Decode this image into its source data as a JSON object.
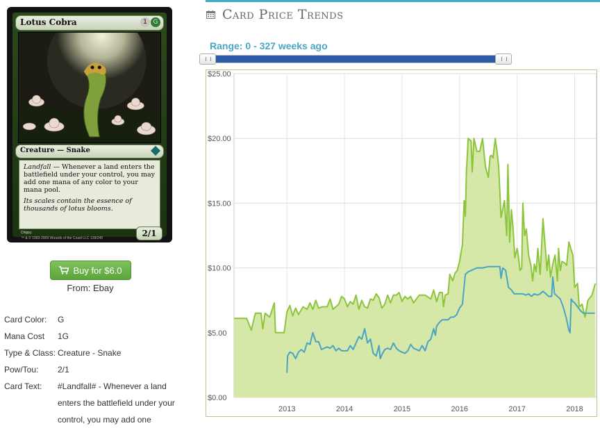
{
  "card": {
    "name": "Lotus Cobra",
    "cost_generic": "1",
    "cost_color": "G",
    "type_line": "Creature — Snake",
    "rules_keyword": "Landfall",
    "rules_text": " — Whenever a land enters the battlefield under your control, you may add one mana of any color to your mana pool.",
    "flavor_text": "Its scales contain the essence of thousands of lotus blooms.",
    "power_toughness": "2/1",
    "artist": "Chippy",
    "copyright": "™ & © 1993-2009 Wizards of the Coast LLC 139/249"
  },
  "buy": {
    "label": "Buy for $6.0",
    "from": "From: Ebay"
  },
  "details": [
    {
      "label": "Card Color:",
      "value": "G"
    },
    {
      "label": "Mana Cost",
      "value": "1G"
    },
    {
      "label": "Type & Class:",
      "value": "Creature - Snake"
    },
    {
      "label": "Pow/Tou:",
      "value": "2/1"
    },
    {
      "label": "Card Text:",
      "value": "#Landfall# - Whenever a land enters the battlefield under your control, you may add one"
    }
  ],
  "header": {
    "title": "Card Price Trends",
    "icon": "calendar-icon",
    "accent": "#3fb0c6"
  },
  "range": {
    "label": "Range: 0 - 327 weeks ago",
    "min_weeks": 0,
    "max_weeks": 327
  },
  "chart_data": {
    "type": "area",
    "title": "",
    "xlabel": "",
    "ylabel": "",
    "ylim": [
      0,
      25
    ],
    "yticks": [
      "$0.00",
      "$5.00",
      "$10.00",
      "$15.00",
      "$20.00",
      "$25.00"
    ],
    "xlim": [
      2012.08,
      2018.38
    ],
    "xticks": [
      {
        "label": "2013",
        "x": 2013
      },
      {
        "label": "2014",
        "x": 2014
      },
      {
        "label": "2015",
        "x": 2015
      },
      {
        "label": "2016",
        "x": 2016
      },
      {
        "label": "2017",
        "x": 2017
      },
      {
        "label": "2018",
        "x": 2018
      }
    ],
    "grid": true,
    "series": [
      {
        "color": "#8cc43c",
        "fill": "#d5e8a8",
        "points": [
          [
            2012.08,
            6.1
          ],
          [
            2012.3,
            6.1
          ],
          [
            2012.38,
            5.2
          ],
          [
            2012.45,
            6.5
          ],
          [
            2012.55,
            6.5
          ],
          [
            2012.58,
            5.3
          ],
          [
            2012.62,
            6.5
          ],
          [
            2012.7,
            6.2
          ],
          [
            2012.78,
            7.3
          ],
          [
            2012.8,
            5.0
          ],
          [
            2012.88,
            5.0
          ],
          [
            2012.95,
            5.0
          ],
          [
            2013.0,
            6.6
          ],
          [
            2013.05,
            7.1
          ],
          [
            2013.1,
            6.3
          ],
          [
            2013.15,
            6.9
          ],
          [
            2013.2,
            6.4
          ],
          [
            2013.28,
            7.0
          ],
          [
            2013.35,
            6.8
          ],
          [
            2013.4,
            7.3
          ],
          [
            2013.45,
            6.8
          ],
          [
            2013.5,
            7.5
          ],
          [
            2013.55,
            6.9
          ],
          [
            2013.62,
            7.0
          ],
          [
            2013.7,
            7.0
          ],
          [
            2013.75,
            7.6
          ],
          [
            2013.8,
            6.8
          ],
          [
            2013.85,
            7.0
          ],
          [
            2013.9,
            7.2
          ],
          [
            2013.95,
            7.8
          ],
          [
            2014.0,
            7.6
          ],
          [
            2014.05,
            7.0
          ],
          [
            2014.1,
            7.4
          ],
          [
            2014.15,
            7.2
          ],
          [
            2014.2,
            7.9
          ],
          [
            2014.25,
            6.8
          ],
          [
            2014.3,
            7.5
          ],
          [
            2014.35,
            7.0
          ],
          [
            2014.4,
            6.9
          ],
          [
            2014.45,
            7.6
          ],
          [
            2014.5,
            7.5
          ],
          [
            2014.55,
            8.0
          ],
          [
            2014.6,
            7.7
          ],
          [
            2014.65,
            6.9
          ],
          [
            2014.7,
            7.2
          ],
          [
            2014.75,
            7.9
          ],
          [
            2014.8,
            7.3
          ],
          [
            2014.85,
            7.9
          ],
          [
            2014.9,
            7.9
          ],
          [
            2014.95,
            8.1
          ],
          [
            2015.0,
            7.4
          ],
          [
            2015.05,
            7.8
          ],
          [
            2015.1,
            7.6
          ],
          [
            2015.15,
            7.8
          ],
          [
            2015.2,
            7.3
          ],
          [
            2015.3,
            7.9
          ],
          [
            2015.4,
            7.9
          ],
          [
            2015.5,
            7.6
          ],
          [
            2015.55,
            8.3
          ],
          [
            2015.6,
            7.4
          ],
          [
            2015.65,
            8.1
          ],
          [
            2015.7,
            8.1
          ],
          [
            2015.72,
            7.0
          ],
          [
            2015.75,
            7.9
          ],
          [
            2015.8,
            8.0
          ],
          [
            2015.83,
            9.5
          ],
          [
            2015.88,
            9.0
          ],
          [
            2015.92,
            9.6
          ],
          [
            2015.96,
            9.8
          ],
          [
            2016.0,
            10.5
          ],
          [
            2016.05,
            11.8
          ],
          [
            2016.08,
            15.2
          ],
          [
            2016.1,
            14.0
          ],
          [
            2016.12,
            17.5
          ],
          [
            2016.15,
            20.0
          ],
          [
            2016.2,
            19.8
          ],
          [
            2016.22,
            17.4
          ],
          [
            2016.25,
            20.0
          ],
          [
            2016.3,
            19.0
          ],
          [
            2016.35,
            19.0
          ],
          [
            2016.4,
            20.0
          ],
          [
            2016.45,
            17.8
          ],
          [
            2016.5,
            17.0
          ],
          [
            2016.53,
            18.6
          ],
          [
            2016.55,
            18.7
          ],
          [
            2016.58,
            18.5
          ],
          [
            2016.62,
            20.0
          ],
          [
            2016.65,
            19.0
          ],
          [
            2016.68,
            17.8
          ],
          [
            2016.72,
            13.9
          ],
          [
            2016.78,
            15.2
          ],
          [
            2016.82,
            12.5
          ],
          [
            2016.84,
            18.0
          ],
          [
            2016.87,
            12.0
          ],
          [
            2016.9,
            14.5
          ],
          [
            2016.93,
            13.0
          ],
          [
            2016.96,
            10.8
          ],
          [
            2017.0,
            11.5
          ],
          [
            2017.02,
            11.0
          ],
          [
            2017.05,
            9.8
          ],
          [
            2017.08,
            10.0
          ],
          [
            2017.1,
            15.0
          ],
          [
            2017.13,
            12.5
          ],
          [
            2017.16,
            13.0
          ],
          [
            2017.2,
            11.0
          ],
          [
            2017.24,
            10.2
          ],
          [
            2017.27,
            9.0
          ],
          [
            2017.3,
            10.3
          ],
          [
            2017.33,
            9.7
          ],
          [
            2017.36,
            11.5
          ],
          [
            2017.4,
            9.5
          ],
          [
            2017.45,
            13.8
          ],
          [
            2017.5,
            11.0
          ],
          [
            2017.52,
            9.8
          ],
          [
            2017.55,
            11.0
          ],
          [
            2017.58,
            9.3
          ],
          [
            2017.62,
            10.3
          ],
          [
            2017.66,
            11.0
          ],
          [
            2017.7,
            9.0
          ],
          [
            2017.72,
            11.5
          ],
          [
            2017.75,
            9.8
          ],
          [
            2017.78,
            10.5
          ],
          [
            2017.82,
            10.4
          ],
          [
            2017.86,
            10.2
          ],
          [
            2017.9,
            12.0
          ],
          [
            2017.94,
            11.4
          ],
          [
            2017.97,
            11.0
          ],
          [
            2018.0,
            8.5
          ],
          [
            2018.05,
            8.8
          ],
          [
            2018.08,
            7.0
          ],
          [
            2018.13,
            7.2
          ],
          [
            2018.18,
            6.2
          ],
          [
            2018.23,
            7.5
          ],
          [
            2018.3,
            7.9
          ],
          [
            2018.36,
            8.8
          ]
        ]
      },
      {
        "color": "#4ba3c3",
        "points": [
          [
            2013.0,
            1.9
          ],
          [
            2013.01,
            3.2
          ],
          [
            2013.05,
            3.5
          ],
          [
            2013.1,
            3.4
          ],
          [
            2013.15,
            3.0
          ],
          [
            2013.2,
            3.5
          ],
          [
            2013.25,
            3.7
          ],
          [
            2013.3,
            3.5
          ],
          [
            2013.35,
            4.2
          ],
          [
            2013.4,
            4.1
          ],
          [
            2013.45,
            5.0
          ],
          [
            2013.5,
            4.3
          ],
          [
            2013.55,
            4.3
          ],
          [
            2013.6,
            3.7
          ],
          [
            2013.7,
            3.9
          ],
          [
            2013.75,
            3.8
          ],
          [
            2013.8,
            4.0
          ],
          [
            2013.85,
            3.6
          ],
          [
            2013.9,
            3.8
          ],
          [
            2013.95,
            3.6
          ],
          [
            2014.05,
            3.6
          ],
          [
            2014.1,
            4.0
          ],
          [
            2014.15,
            3.7
          ],
          [
            2014.2,
            4.2
          ],
          [
            2014.25,
            4.7
          ],
          [
            2014.3,
            4.5
          ],
          [
            2014.35,
            5.3
          ],
          [
            2014.4,
            4.2
          ],
          [
            2014.45,
            4.5
          ],
          [
            2014.5,
            3.4
          ],
          [
            2014.55,
            3.2
          ],
          [
            2014.6,
            4.0
          ],
          [
            2014.62,
            3.0
          ],
          [
            2014.65,
            3.3
          ],
          [
            2014.7,
            3.7
          ],
          [
            2014.75,
            3.8
          ],
          [
            2014.8,
            3.7
          ],
          [
            2014.85,
            4.2
          ],
          [
            2014.9,
            3.8
          ],
          [
            2014.95,
            3.6
          ],
          [
            2015.0,
            3.5
          ],
          [
            2015.05,
            3.4
          ],
          [
            2015.1,
            3.6
          ],
          [
            2015.15,
            4.1
          ],
          [
            2015.2,
            3.8
          ],
          [
            2015.3,
            3.6
          ],
          [
            2015.35,
            4.0
          ],
          [
            2015.4,
            3.6
          ],
          [
            2015.45,
            4.3
          ],
          [
            2015.5,
            4.5
          ],
          [
            2015.55,
            5.3
          ],
          [
            2015.58,
            4.8
          ],
          [
            2015.6,
            5.5
          ],
          [
            2015.65,
            5.8
          ],
          [
            2015.7,
            6.0
          ],
          [
            2015.75,
            6.0
          ],
          [
            2015.8,
            6.0
          ],
          [
            2015.85,
            6.2
          ],
          [
            2015.9,
            6.2
          ],
          [
            2015.95,
            6.4
          ],
          [
            2016.0,
            6.9
          ],
          [
            2016.05,
            7.2
          ],
          [
            2016.1,
            9.5
          ],
          [
            2016.15,
            9.7
          ],
          [
            2016.2,
            9.8
          ],
          [
            2016.3,
            10.0
          ],
          [
            2016.4,
            10.0
          ],
          [
            2016.5,
            10.1
          ],
          [
            2016.6,
            10.1
          ],
          [
            2016.7,
            10.1
          ],
          [
            2016.72,
            9.2
          ],
          [
            2016.75,
            10.0
          ],
          [
            2016.8,
            9.8
          ],
          [
            2016.85,
            8.5
          ],
          [
            2016.9,
            8.3
          ],
          [
            2016.95,
            8.0
          ],
          [
            2017.0,
            8.0
          ],
          [
            2017.1,
            8.0
          ],
          [
            2017.15,
            7.9
          ],
          [
            2017.2,
            8.0
          ],
          [
            2017.25,
            7.8
          ],
          [
            2017.3,
            8.0
          ],
          [
            2017.35,
            7.9
          ],
          [
            2017.4,
            8.0
          ],
          [
            2017.45,
            8.2
          ],
          [
            2017.5,
            8.0
          ],
          [
            2017.55,
            7.8
          ],
          [
            2017.6,
            7.8
          ],
          [
            2017.62,
            9.3
          ],
          [
            2017.65,
            8.0
          ],
          [
            2017.7,
            7.8
          ],
          [
            2017.75,
            7.6
          ],
          [
            2017.8,
            7.0
          ],
          [
            2017.85,
            6.2
          ],
          [
            2017.9,
            5.2
          ],
          [
            2017.92,
            5.0
          ],
          [
            2017.94,
            7.6
          ],
          [
            2017.97,
            7.4
          ],
          [
            2018.0,
            7.3
          ],
          [
            2018.05,
            7.0
          ],
          [
            2018.1,
            6.7
          ],
          [
            2018.15,
            6.5
          ],
          [
            2018.25,
            6.5
          ],
          [
            2018.35,
            6.5
          ]
        ]
      }
    ]
  }
}
